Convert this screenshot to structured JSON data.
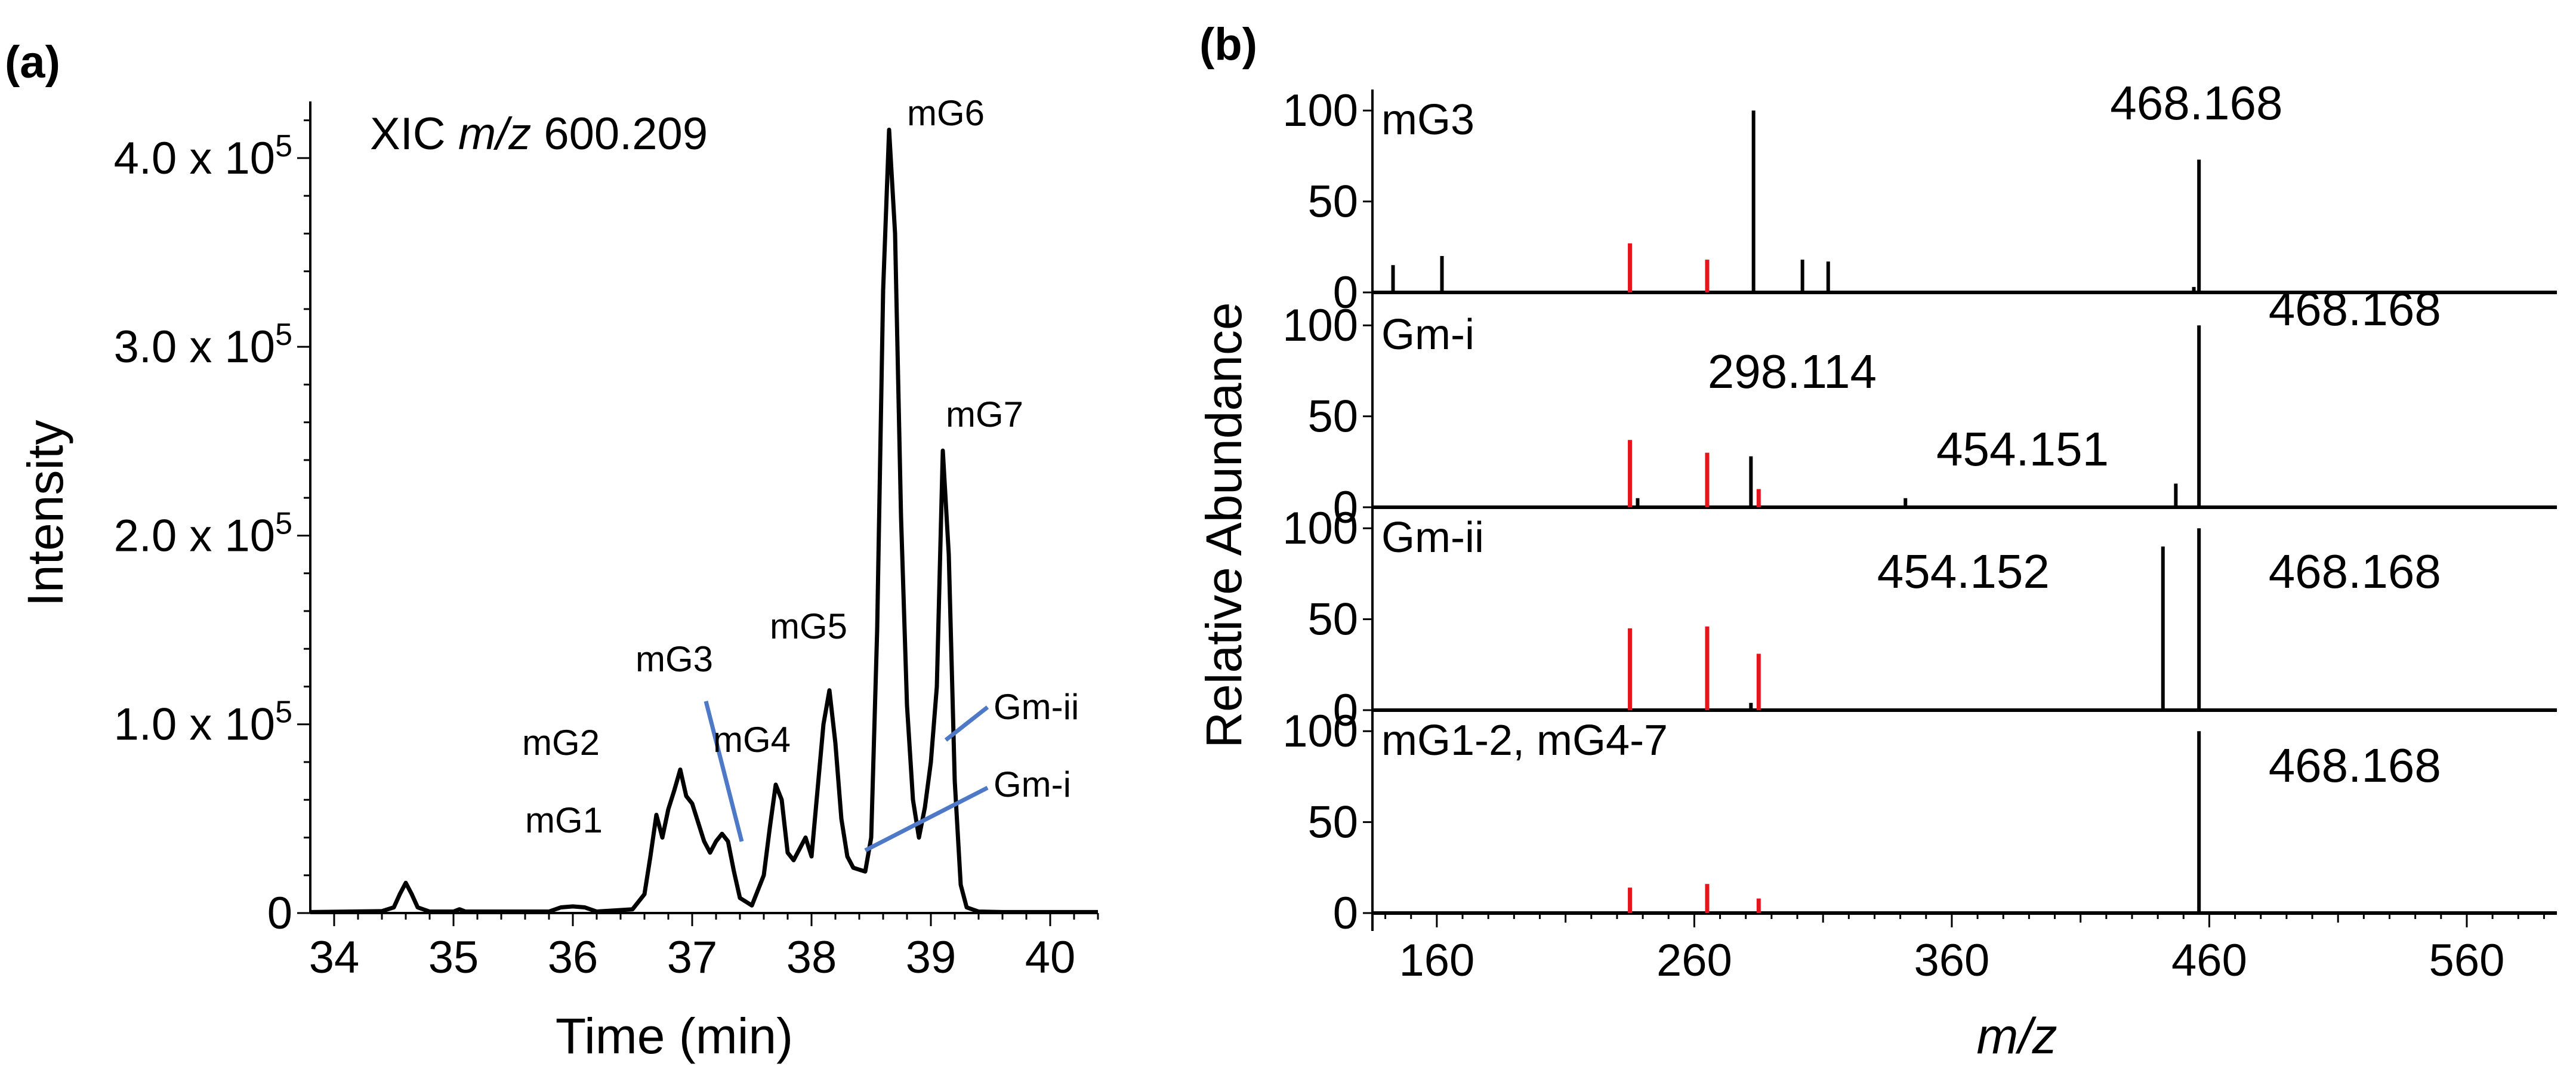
{
  "panel_a": {
    "label": "(a)",
    "xic_prefix": "XIC ",
    "xic_mz": "m/z",
    "xic_value": " 600.209"
  },
  "panel_b": {
    "label": "(b)"
  },
  "chart_data": [
    {
      "type": "line",
      "xlabel": "Time (min)",
      "ylabel": "Intensity",
      "xlim": [
        33.8,
        40.4
      ],
      "ylim": [
        0,
        430000
      ],
      "x_ticks": [
        34,
        35,
        36,
        37,
        38,
        39,
        40
      ],
      "y_ticks": [
        {
          "value": 0,
          "label": "0",
          "exp": ""
        },
        {
          "value": 100000,
          "label": "1.0 x 10",
          "exp": "5"
        },
        {
          "value": 200000,
          "label": "2.0 x 10",
          "exp": "5"
        },
        {
          "value": 300000,
          "label": "3.0 x 10",
          "exp": "5"
        },
        {
          "value": 400000,
          "label": "4.0 x 10",
          "exp": "5"
        }
      ],
      "series": [
        {
          "x": [
            33.8,
            34.4,
            34.5,
            34.55,
            34.6,
            34.65,
            34.7,
            34.8,
            35.0,
            35.05,
            35.1,
            35.8,
            35.9,
            36.0,
            36.1,
            36.2,
            36.5,
            36.6,
            36.65,
            36.7,
            36.75,
            36.8,
            36.85,
            36.9,
            36.95,
            37.0,
            37.05,
            37.1,
            37.15,
            37.2,
            37.25,
            37.3,
            37.35,
            37.4,
            37.5,
            37.6,
            37.65,
            37.7,
            37.75,
            37.8,
            37.85,
            37.9,
            37.95,
            38.0,
            38.05,
            38.1,
            38.15,
            38.2,
            38.25,
            38.3,
            38.35,
            38.4,
            38.45,
            38.5,
            38.55,
            38.6,
            38.65,
            38.7,
            38.75,
            38.8,
            38.85,
            38.9,
            38.95,
            39.0,
            39.05,
            39.1,
            39.15,
            39.2,
            39.25,
            39.3,
            39.4,
            39.6,
            40.4
          ],
          "y": [
            500,
            1000,
            3000,
            10000,
            16000,
            10000,
            3000,
            800,
            800,
            2000,
            800,
            800,
            3000,
            3500,
            3000,
            800,
            2000,
            10000,
            30000,
            52000,
            40000,
            55000,
            65000,
            76000,
            62000,
            58000,
            48000,
            38000,
            32000,
            38000,
            42000,
            38000,
            22000,
            8000,
            4000,
            20000,
            45000,
            68000,
            60000,
            32000,
            28000,
            34000,
            40000,
            30000,
            65000,
            100000,
            118000,
            90000,
            50000,
            30000,
            24000,
            23000,
            22000,
            40000,
            150000,
            330000,
            415000,
            360000,
            210000,
            110000,
            60000,
            40000,
            56000,
            80000,
            120000,
            245000,
            190000,
            70000,
            15000,
            3000,
            800,
            500,
            500
          ]
        }
      ],
      "annotations": [
        {
          "text": "mG1",
          "x": 36.7
        },
        {
          "text": "mG2",
          "x": 36.85
        },
        {
          "text": "mG3",
          "x": 37.25
        },
        {
          "text": "mG4",
          "x": 37.35
        },
        {
          "text": "mG5",
          "x": 38.15
        },
        {
          "text": "mG6",
          "x": 38.65
        },
        {
          "text": "mG7",
          "x": 39.1
        },
        {
          "text": "Gm-ii",
          "x": 39.0
        },
        {
          "text": "Gm-i",
          "x": 38.4
        }
      ]
    },
    {
      "type": "bar",
      "xlabel": "m/z",
      "ylabel": "Relative Abundance",
      "xlim": [
        135,
        595
      ],
      "ylim": [
        0,
        105
      ],
      "x_ticks": [
        160,
        260,
        360,
        460,
        560
      ],
      "y_ticks": [
        0,
        50,
        100
      ],
      "spectra": [
        {
          "name": "mG3",
          "labels": [
            {
              "text": "468.168",
              "mz": 455
            }
          ],
          "black_peaks": [
            [
              143,
              15
            ],
            [
              162,
              20
            ],
            [
              283,
              100
            ],
            [
              302,
              18
            ],
            [
              312,
              17
            ],
            [
              454,
              3
            ],
            [
              456,
              73
            ]
          ],
          "red_peaks": [
            [
              235,
              27
            ],
            [
              265,
              18
            ]
          ]
        },
        {
          "name": "Gm-i",
          "labels": [
            {
              "text": "298.114",
              "mz": 298
            },
            {
              "text": "454.151",
              "mz": 421
            },
            {
              "text": "468.168",
              "mz": 483
            }
          ],
          "black_peaks": [
            [
              238,
              5
            ],
            [
              282,
              28
            ],
            [
              342,
              5
            ],
            [
              447,
              13
            ],
            [
              456,
              100
            ]
          ],
          "red_peaks": [
            [
              235,
              37
            ],
            [
              265,
              30
            ],
            [
              285,
              10
            ]
          ]
        },
        {
          "name": "Gm-ii",
          "labels": [
            {
              "text": "454.152",
              "mz": 398
            },
            {
              "text": "468.168",
              "mz": 483
            }
          ],
          "black_peaks": [
            [
              282,
              4
            ],
            [
              442,
              90
            ],
            [
              456,
              100
            ]
          ],
          "red_peaks": [
            [
              235,
              45
            ],
            [
              265,
              46
            ],
            [
              285,
              31
            ]
          ]
        },
        {
          "name": "mG1-2, mG4-7",
          "labels": [
            {
              "text": "468.168",
              "mz": 483
            }
          ],
          "black_peaks": [
            [
              456,
              100
            ]
          ],
          "red_peaks": [
            [
              235,
              14
            ],
            [
              265,
              16
            ],
            [
              285,
              8
            ]
          ]
        }
      ]
    }
  ]
}
